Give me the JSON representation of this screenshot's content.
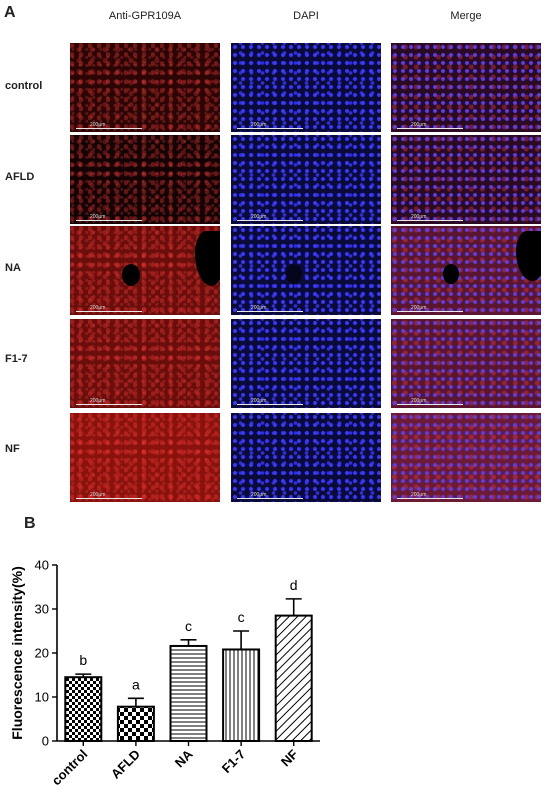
{
  "panel_a": {
    "label": "A",
    "columns": [
      "Anti-GPR109A",
      "DAPI",
      "Merge"
    ],
    "rows": [
      "control",
      "AFLD",
      "NA",
      "F1-7",
      "NF"
    ],
    "scale_bar": "200μm"
  },
  "panel_b": {
    "label": "B"
  },
  "chart_data": {
    "type": "bar",
    "categories": [
      "control",
      "AFLD",
      "NA",
      "F1-7",
      "NF"
    ],
    "values": [
      14.5,
      7.8,
      21.6,
      20.8,
      28.5
    ],
    "errors": [
      0.7,
      1.9,
      1.4,
      4.2,
      3.8
    ],
    "letters": [
      "b",
      "a",
      "c",
      "c",
      "d"
    ],
    "patterns": [
      "checker-small",
      "checker-large",
      "horizontal",
      "vertical",
      "diagonal"
    ],
    "ylabel": "Fluorescence intensity(%)",
    "xlabel": "",
    "title": "",
    "ylim": [
      0,
      40
    ],
    "yticks": [
      0,
      10,
      20,
      30,
      40
    ],
    "grid": false
  }
}
